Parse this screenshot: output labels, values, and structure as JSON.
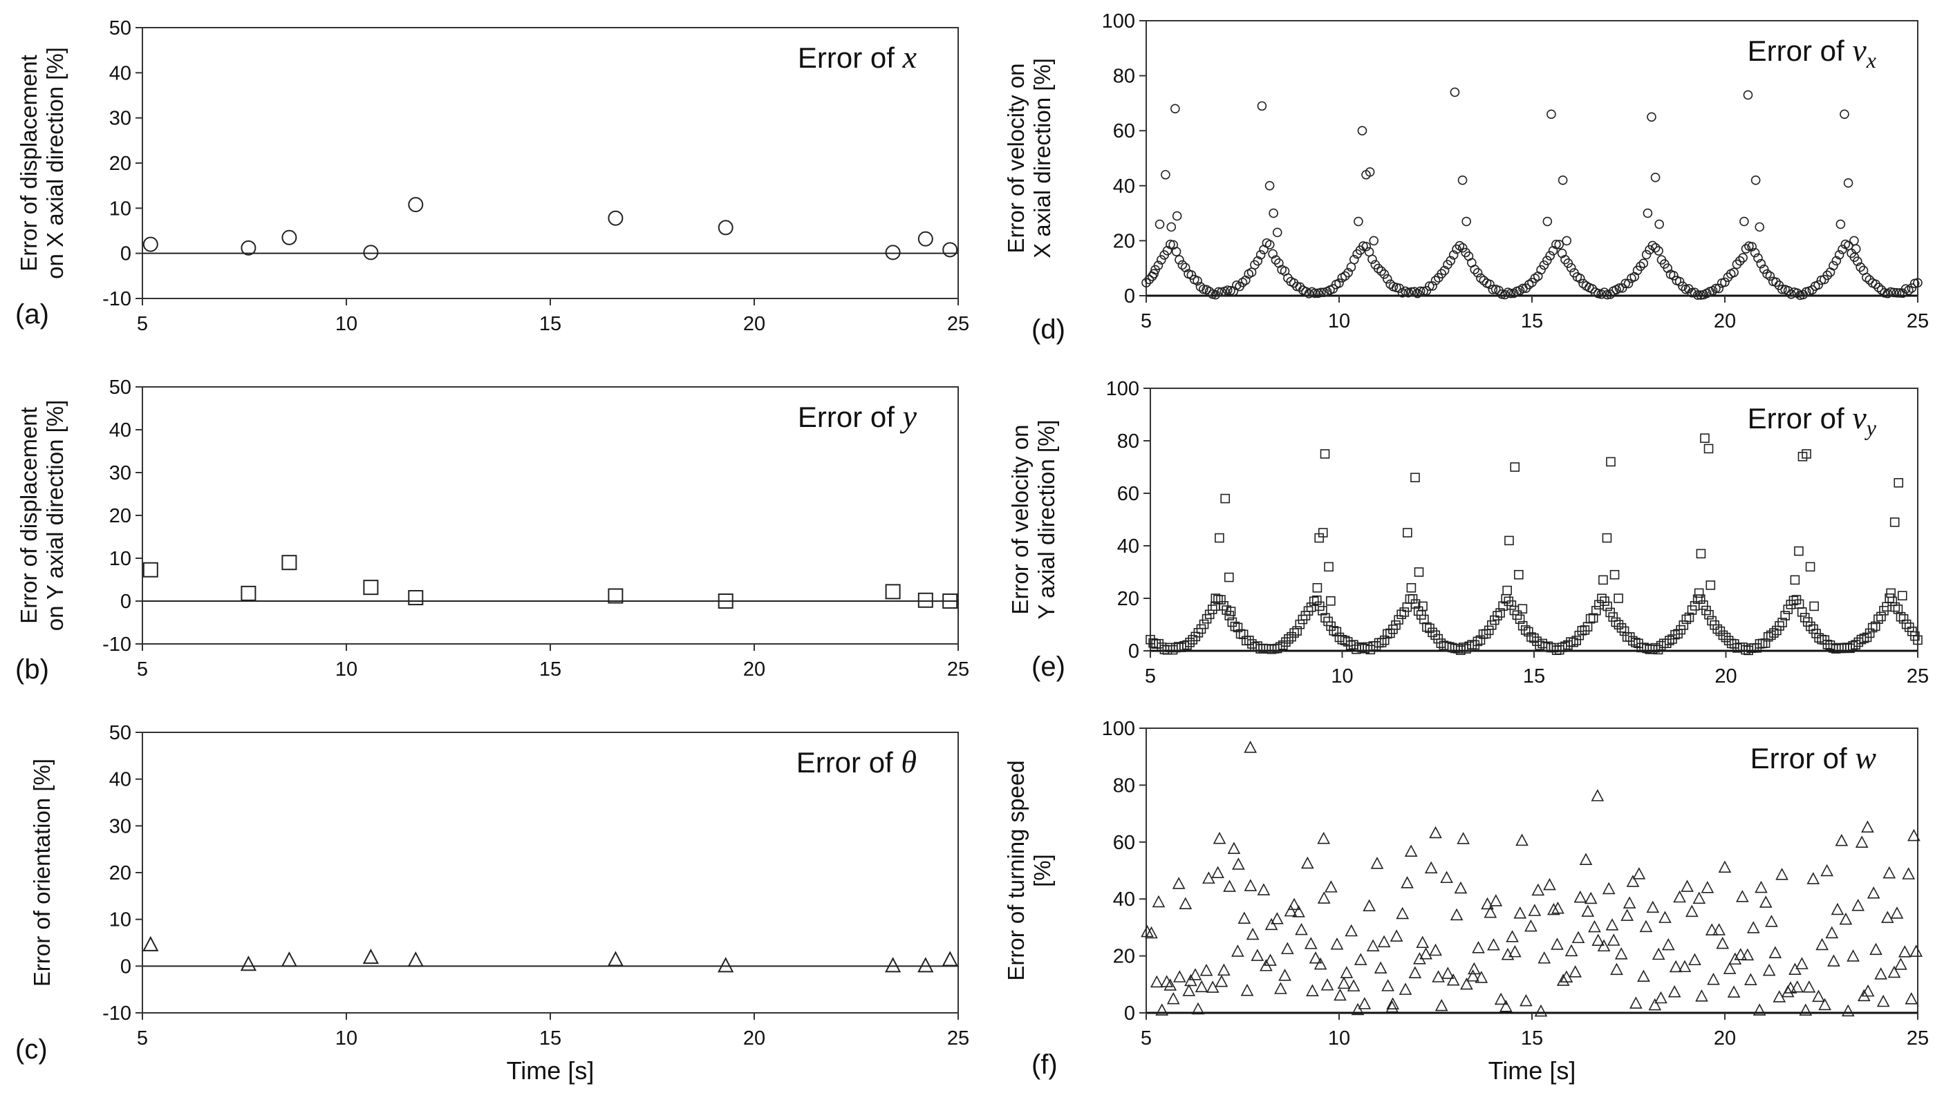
{
  "chart_data": [
    {
      "type": "scatter",
      "panel": "(a)",
      "marker": "circle",
      "title": "Error of ",
      "title_var": "x",
      "title_sub": "",
      "ylabel_lines": [
        "Error of displacement",
        "on X axial direction [%]"
      ],
      "xlabel": "",
      "xlim": [
        5,
        25
      ],
      "ylim": [
        -10,
        50
      ],
      "xticks": [
        5,
        10,
        15,
        20,
        25
      ],
      "yticks": [
        -10,
        0,
        10,
        20,
        30,
        40,
        50
      ],
      "points": [
        [
          5.2,
          2
        ],
        [
          7.6,
          1.2
        ],
        [
          8.6,
          3.5
        ],
        [
          10.6,
          0.2
        ],
        [
          11.7,
          10.8
        ],
        [
          16.6,
          7.8
        ],
        [
          19.3,
          5.7
        ],
        [
          23.4,
          0.2
        ],
        [
          24.2,
          3.2
        ],
        [
          24.8,
          0.8
        ]
      ]
    },
    {
      "type": "scatter",
      "panel": "(b)",
      "marker": "square",
      "title": "Error of ",
      "title_var": "y",
      "title_sub": "",
      "ylabel_lines": [
        "Error of displacement",
        "on Y axial direction [%]"
      ],
      "xlabel": "",
      "xlim": [
        5,
        25
      ],
      "ylim": [
        -10,
        50
      ],
      "xticks": [
        5,
        10,
        15,
        20,
        25
      ],
      "yticks": [
        -10,
        0,
        10,
        20,
        30,
        40,
        50
      ],
      "points": [
        [
          5.2,
          7.3
        ],
        [
          7.6,
          1.8
        ],
        [
          8.6,
          9
        ],
        [
          10.6,
          3.2
        ],
        [
          11.7,
          0.8
        ],
        [
          16.6,
          1.2
        ],
        [
          19.3,
          0
        ],
        [
          23.4,
          2.2
        ],
        [
          24.2,
          0.2
        ],
        [
          24.8,
          0
        ]
      ]
    },
    {
      "type": "scatter",
      "panel": "(c)",
      "marker": "triangle",
      "title": "Error of ",
      "title_var": "θ",
      "title_sub": "",
      "ylabel_lines": [
        "Error of orientation [%]"
      ],
      "xlabel": "Time [s]",
      "xlim": [
        5,
        25
      ],
      "ylim": [
        -10,
        50
      ],
      "xticks": [
        5,
        10,
        15,
        20,
        25
      ],
      "yticks": [
        -10,
        0,
        10,
        20,
        30,
        40,
        50
      ],
      "points": [
        [
          5.2,
          4.5
        ],
        [
          7.6,
          0.3
        ],
        [
          8.6,
          1.2
        ],
        [
          10.6,
          1.8
        ],
        [
          11.7,
          1.2
        ],
        [
          16.6,
          1.3
        ],
        [
          19.3,
          0
        ],
        [
          23.4,
          0
        ],
        [
          24.2,
          0
        ],
        [
          24.8,
          1.3
        ]
      ]
    },
    {
      "type": "scatter",
      "panel": "(d)",
      "marker": "circle-small",
      "title": "Error of ",
      "title_var": "v",
      "title_sub": "x",
      "ylabel_lines": [
        "Error of velocity on",
        "X axial direction [%]"
      ],
      "xlabel": "",
      "xlim": [
        5,
        25
      ],
      "ylim": [
        0,
        100
      ],
      "xticks": [
        5,
        10,
        15,
        20,
        25
      ],
      "yticks": [
        0,
        20,
        40,
        60,
        80,
        100
      ],
      "period": 2.5,
      "phase": 6.9,
      "amplitude": 17,
      "density": 32,
      "peaks": [
        [
          5.2,
          8
        ],
        [
          5.35,
          26
        ],
        [
          5.5,
          44
        ],
        [
          5.65,
          25
        ],
        [
          5.75,
          68
        ],
        [
          5.8,
          29
        ],
        [
          8.0,
          69
        ],
        [
          8.2,
          40
        ],
        [
          8.3,
          30
        ],
        [
          8.4,
          23
        ],
        [
          10.5,
          27
        ],
        [
          10.6,
          60
        ],
        [
          10.7,
          44
        ],
        [
          10.8,
          45
        ],
        [
          10.9,
          20
        ],
        [
          13.0,
          74
        ],
        [
          13.2,
          42
        ],
        [
          13.3,
          27
        ],
        [
          15.5,
          66
        ],
        [
          15.4,
          27
        ],
        [
          15.8,
          42
        ],
        [
          15.9,
          20
        ],
        [
          18.0,
          30
        ],
        [
          18.1,
          65
        ],
        [
          18.2,
          43
        ],
        [
          18.3,
          26
        ],
        [
          20.5,
          27
        ],
        [
          20.6,
          73
        ],
        [
          20.8,
          42
        ],
        [
          20.9,
          25
        ],
        [
          23.0,
          26
        ],
        [
          23.1,
          66
        ],
        [
          23.2,
          41
        ],
        [
          23.35,
          20
        ],
        [
          23.4,
          17
        ]
      ]
    },
    {
      "type": "scatter",
      "panel": "(e)",
      "marker": "square-small",
      "title": "Error of ",
      "title_var": "v",
      "title_sub": "y",
      "ylabel_lines": [
        "Error of velocity on",
        "Y axial direction [%]"
      ],
      "xlabel": "",
      "xlim": [
        5,
        25
      ],
      "ylim": [
        0,
        100
      ],
      "xticks": [
        5,
        10,
        15,
        20,
        25
      ],
      "yticks": [
        0,
        20,
        40,
        60,
        80,
        100
      ],
      "period": 2.5,
      "phase": 5.55,
      "amplitude": 18,
      "density": 34,
      "peaks": [
        [
          6.7,
          20
        ],
        [
          6.8,
          43
        ],
        [
          6.95,
          58
        ],
        [
          7.05,
          28
        ],
        [
          7.1,
          15
        ],
        [
          9.35,
          24
        ],
        [
          9.4,
          43
        ],
        [
          9.5,
          45
        ],
        [
          9.55,
          75
        ],
        [
          9.65,
          32
        ],
        [
          9.7,
          19
        ],
        [
          11.7,
          45
        ],
        [
          11.8,
          24
        ],
        [
          11.9,
          66
        ],
        [
          12.0,
          30
        ],
        [
          12.1,
          17
        ],
        [
          14.3,
          23
        ],
        [
          14.35,
          42
        ],
        [
          14.5,
          70
        ],
        [
          14.6,
          29
        ],
        [
          14.7,
          16
        ],
        [
          16.8,
          27
        ],
        [
          16.9,
          43
        ],
        [
          17.0,
          72
        ],
        [
          17.1,
          29
        ],
        [
          17.2,
          20
        ],
        [
          19.3,
          22
        ],
        [
          19.35,
          37
        ],
        [
          19.45,
          81
        ],
        [
          19.55,
          77
        ],
        [
          19.6,
          25
        ],
        [
          21.8,
          27
        ],
        [
          21.9,
          38
        ],
        [
          22.0,
          74
        ],
        [
          22.1,
          75
        ],
        [
          22.2,
          32
        ],
        [
          22.3,
          17
        ],
        [
          24.3,
          22
        ],
        [
          24.4,
          49
        ],
        [
          24.5,
          64
        ],
        [
          24.6,
          21
        ]
      ]
    },
    {
      "type": "scatter",
      "panel": "(f)",
      "marker": "triangle-small",
      "title": "Error of ",
      "title_var": "w",
      "title_sub": "",
      "ylabel_lines": [
        "Error of turning speed",
        "[%]"
      ],
      "xlabel": "Time [s]",
      "xlim": [
        5,
        25
      ],
      "ylim": [
        0,
        100
      ],
      "xticks": [
        5,
        10,
        15,
        20,
        25
      ],
      "yticks": [
        0,
        20,
        40,
        60,
        80,
        100
      ],
      "count": 210,
      "range": [
        0,
        65
      ],
      "outliers": [
        [
          7.7,
          93
        ],
        [
          16.7,
          76
        ],
        [
          23.7,
          65
        ],
        [
          24.9,
          62
        ],
        [
          12.5,
          63
        ],
        [
          9.6,
          61
        ],
        [
          6.9,
          61
        ]
      ]
    }
  ]
}
